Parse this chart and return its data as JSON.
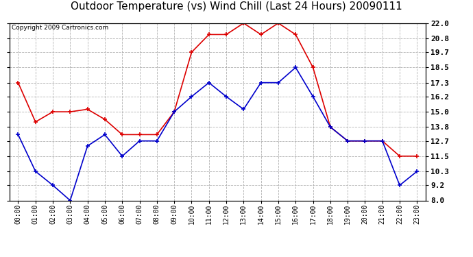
{
  "title": "Outdoor Temperature (vs) Wind Chill (Last 24 Hours) 20090111",
  "copyright": "Copyright 2009 Cartronics.com",
  "hours": [
    "00:00",
    "01:00",
    "02:00",
    "03:00",
    "04:00",
    "05:00",
    "06:00",
    "07:00",
    "08:00",
    "09:00",
    "10:00",
    "11:00",
    "12:00",
    "13:00",
    "14:00",
    "15:00",
    "16:00",
    "17:00",
    "18:00",
    "19:00",
    "20:00",
    "21:00",
    "22:00",
    "23:00"
  ],
  "red_temp": [
    17.3,
    14.2,
    15.0,
    15.0,
    15.2,
    14.4,
    13.2,
    13.2,
    13.2,
    15.0,
    19.7,
    21.1,
    21.1,
    22.0,
    21.1,
    22.0,
    21.1,
    18.5,
    13.8,
    12.7,
    12.7,
    12.7,
    11.5,
    11.5
  ],
  "blue_wc": [
    13.2,
    10.3,
    9.2,
    8.0,
    12.3,
    13.2,
    11.5,
    12.7,
    12.7,
    15.0,
    16.2,
    17.3,
    16.2,
    15.2,
    17.3,
    17.3,
    18.5,
    16.2,
    13.8,
    12.7,
    12.7,
    12.7,
    9.2,
    10.3
  ],
  "red_color": "#dd0000",
  "blue_color": "#0000cc",
  "bg_color": "#ffffff",
  "plot_bg_color": "#ffffff",
  "grid_color": "#aaaaaa",
  "border_color": "#000000",
  "ylim_min": 8.0,
  "ylim_max": 22.0,
  "yticks": [
    8.0,
    9.2,
    10.3,
    11.5,
    12.7,
    13.8,
    15.0,
    16.2,
    17.3,
    18.5,
    19.7,
    20.8,
    22.0
  ],
  "ytick_labels": [
    "8.0",
    "9.2",
    "10.3",
    "11.5",
    "12.7",
    "13.8",
    "15.0",
    "16.2",
    "17.3",
    "18.5",
    "19.7",
    "20.8",
    "22.0"
  ],
  "title_fontsize": 11,
  "copyright_fontsize": 6.5,
  "tick_fontsize": 7,
  "ytick_fontsize": 8,
  "marker": "+",
  "marker_size": 4,
  "linewidth": 1.2
}
